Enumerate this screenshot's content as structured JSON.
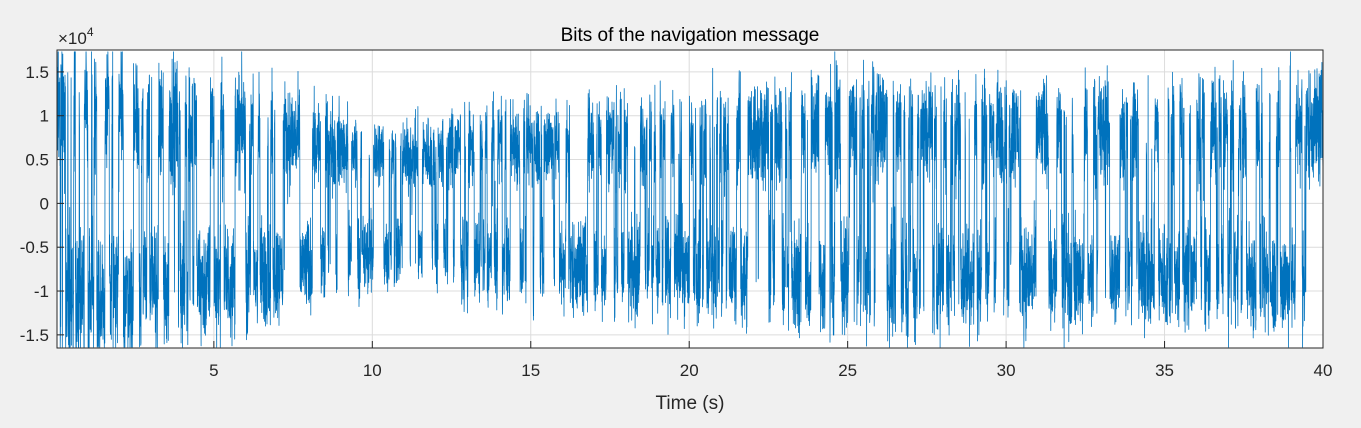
{
  "window": {
    "background": "#f0f0f0"
  },
  "chart_data": {
    "type": "line",
    "title": "Bits of the navigation message",
    "xlabel": "Time (s)",
    "ylabel": "",
    "y_exponent_label": "×10",
    "y_exponent_power": "4",
    "xlim": [
      0.05,
      40
    ],
    "ylim": [
      -16500,
      17500
    ],
    "x_ticks": [
      5,
      10,
      15,
      20,
      25,
      30,
      35,
      40
    ],
    "x_tick_labels": [
      "5",
      "10",
      "15",
      "20",
      "25",
      "30",
      "35",
      "40"
    ],
    "y_ticks": [
      -15000,
      -10000,
      -5000,
      0,
      5000,
      10000,
      15000
    ],
    "y_tick_labels": [
      "-1.5",
      "-1",
      "-0.5",
      "0",
      "0.5",
      "1",
      "1.5"
    ],
    "grid": true,
    "legend": "none",
    "series_color": "#0072bd",
    "series": [
      {
        "x_start": 0.05,
        "x_end": 40,
        "approx_max": 17300,
        "approx_min": -16400,
        "envelope": [
          {
            "t": 0.05,
            "amp": 14500
          },
          {
            "t": 3,
            "amp": 13000
          },
          {
            "t": 6,
            "amp": 11500
          },
          {
            "t": 9,
            "amp": 8500
          },
          {
            "t": 11,
            "amp": 7000
          },
          {
            "t": 13,
            "amp": 8500
          },
          {
            "t": 16,
            "amp": 9500
          },
          {
            "t": 20,
            "amp": 10000
          },
          {
            "t": 23,
            "amp": 11500
          },
          {
            "t": 26,
            "amp": 12000
          },
          {
            "t": 30,
            "amp": 11000
          },
          {
            "t": 34,
            "amp": 11000
          },
          {
            "t": 38,
            "amp": 11500
          },
          {
            "t": 40,
            "amp": 12000
          }
        ]
      }
    ]
  }
}
